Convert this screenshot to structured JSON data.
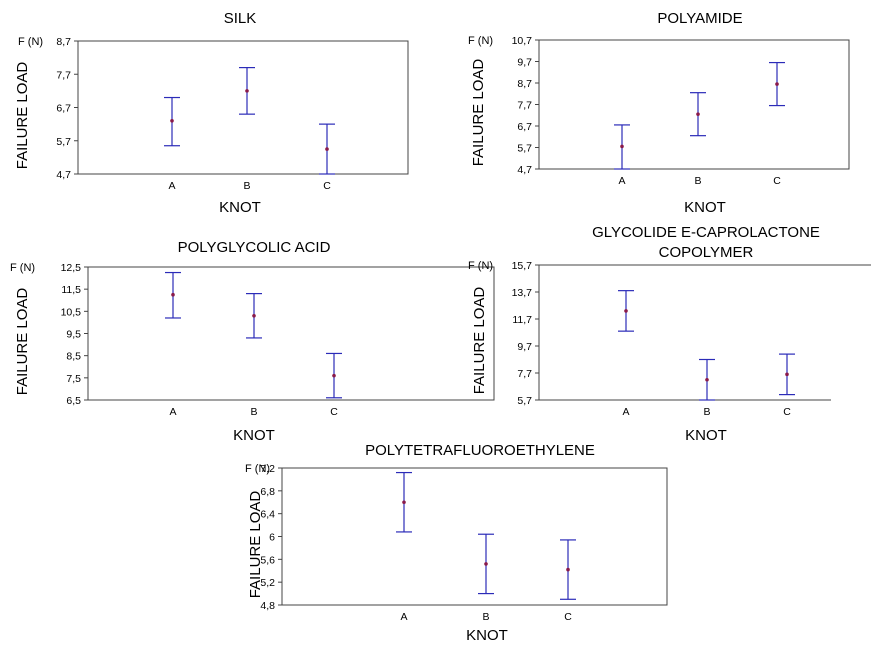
{
  "chart_data": [
    {
      "type": "errorbar",
      "title": "SILK",
      "unit": "F (N)",
      "ylabel": "FAILURE LOAD",
      "xlabel": "KNOT",
      "categories": [
        "A",
        "B",
        "C"
      ],
      "yticks": [
        "8,7",
        "7,7",
        "6,7",
        "5,7",
        "4,7"
      ],
      "ytick_values": [
        8.7,
        7.7,
        6.7,
        5.7,
        4.7
      ],
      "ylim": [
        4.7,
        8.7
      ],
      "series": [
        {
          "mean": [
            6.3,
            7.2,
            5.45
          ],
          "lower": [
            5.55,
            6.5,
            4.7
          ],
          "upper": [
            7.0,
            7.9,
            6.2
          ]
        }
      ],
      "colors": {
        "bar": "#2b2bb8",
        "point": "#8a1a4a"
      }
    },
    {
      "type": "errorbar",
      "title": "POLYAMIDE",
      "unit": "F (N)",
      "ylabel": "FAILURE LOAD",
      "xlabel": "KNOT",
      "categories": [
        "A",
        "B",
        "C"
      ],
      "yticks": [
        "10,7",
        "9,7",
        "8,7",
        "7,7",
        "6,7",
        "5,7",
        "4,7"
      ],
      "ytick_values": [
        10.7,
        9.7,
        8.7,
        7.7,
        6.7,
        5.7,
        4.7
      ],
      "ylim": [
        4.7,
        10.7
      ],
      "series": [
        {
          "mean": [
            5.75,
            7.25,
            8.65
          ],
          "lower": [
            4.7,
            6.25,
            7.65
          ],
          "upper": [
            6.75,
            8.25,
            9.65
          ]
        }
      ],
      "colors": {
        "bar": "#2b2bb8",
        "point": "#8a1a4a"
      }
    },
    {
      "type": "errorbar",
      "title": "POLYGLYCOLIC ACID",
      "unit": "F (N)",
      "ylabel": "FAILURE LOAD",
      "xlabel": "KNOT",
      "categories": [
        "A",
        "B",
        "C"
      ],
      "yticks": [
        "12,5",
        "11,5",
        "10,5",
        "9,5",
        "8,5",
        "7,5",
        "6,5"
      ],
      "ytick_values": [
        12.5,
        11.5,
        10.5,
        9.5,
        8.5,
        7.5,
        6.5
      ],
      "ylim": [
        6.5,
        12.5
      ],
      "series": [
        {
          "mean": [
            11.25,
            10.3,
            7.6
          ],
          "lower": [
            10.2,
            9.3,
            6.6
          ],
          "upper": [
            12.25,
            11.3,
            8.6
          ]
        }
      ],
      "colors": {
        "bar": "#2b2bb8",
        "point": "#8a1a4a"
      }
    },
    {
      "type": "errorbar",
      "title": [
        "GLYCOLIDE E-CAPROLACTONE",
        "COPOLYMER"
      ],
      "unit": "F (N)",
      "ylabel": "FAILURE LOAD",
      "xlabel": "KNOT",
      "categories": [
        "A",
        "B",
        "C"
      ],
      "yticks": [
        "15,7",
        "13,7",
        "11,7",
        "9,7",
        "7,7",
        "5,7"
      ],
      "ytick_values": [
        15.7,
        13.7,
        11.7,
        9.7,
        7.7,
        5.7
      ],
      "ylim": [
        5.7,
        15.7
      ],
      "series": [
        {
          "mean": [
            12.3,
            7.2,
            7.6
          ],
          "lower": [
            10.8,
            5.7,
            6.1
          ],
          "upper": [
            13.8,
            8.7,
            9.1
          ]
        }
      ],
      "colors": {
        "bar": "#2b2bb8",
        "point": "#8a1a4a"
      }
    },
    {
      "type": "errorbar",
      "title": "POLYTETRAFLUOROETHYLENE",
      "unit": "F (N)",
      "ylabel": "FAILURE LOAD",
      "xlabel": "KNOT",
      "categories": [
        "A",
        "B",
        "C"
      ],
      "yticks": [
        "7,2",
        "6,8",
        "6,4",
        "6",
        "5,6",
        "5,2",
        "4,8"
      ],
      "ytick_values": [
        7.2,
        6.8,
        6.4,
        6.0,
        5.6,
        5.2,
        4.8
      ],
      "ylim": [
        4.8,
        7.2
      ],
      "series": [
        {
          "mean": [
            6.6,
            5.52,
            5.42
          ],
          "lower": [
            6.08,
            5.0,
            4.9
          ],
          "upper": [
            7.12,
            6.04,
            5.94
          ]
        }
      ],
      "colors": {
        "bar": "#2b2bb8",
        "point": "#8a1a4a"
      }
    }
  ]
}
